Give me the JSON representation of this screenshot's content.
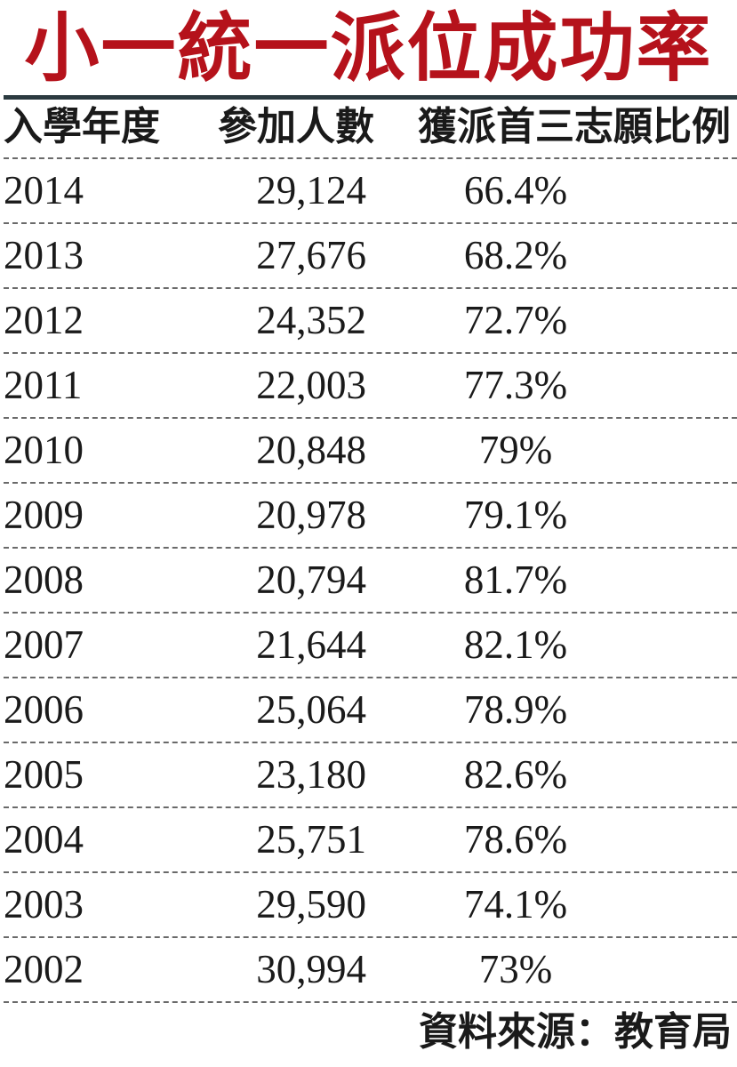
{
  "title": "小一統一派位成功率",
  "colors": {
    "title": "#b5121b",
    "text": "#1a1a1a",
    "rule": "#2b3a40",
    "dash": "#6a6a6a"
  },
  "source": "資料來源：教育局",
  "chart_data": {
    "type": "table",
    "columns": [
      "入學年度",
      "參加人數",
      "獲派首三志願比例"
    ],
    "rows": [
      {
        "year": "2014",
        "count": "29,124",
        "ratio": "66.4%"
      },
      {
        "year": "2013",
        "count": "27,676",
        "ratio": "68.2%"
      },
      {
        "year": "2012",
        "count": "24,352",
        "ratio": "72.7%"
      },
      {
        "year": "2011",
        "count": "22,003",
        "ratio": "77.3%"
      },
      {
        "year": "2010",
        "count": "20,848",
        "ratio": "79%"
      },
      {
        "year": "2009",
        "count": "20,978",
        "ratio": "79.1%"
      },
      {
        "year": "2008",
        "count": "20,794",
        "ratio": "81.7%"
      },
      {
        "year": "2007",
        "count": "21,644",
        "ratio": "82.1%"
      },
      {
        "year": "2006",
        "count": "25,064",
        "ratio": "78.9%"
      },
      {
        "year": "2005",
        "count": "23,180",
        "ratio": "82.6%"
      },
      {
        "year": "2004",
        "count": "25,751",
        "ratio": "78.6%"
      },
      {
        "year": "2003",
        "count": "29,590",
        "ratio": "74.1%"
      },
      {
        "year": "2002",
        "count": "30,994",
        "ratio": "73%"
      }
    ]
  }
}
